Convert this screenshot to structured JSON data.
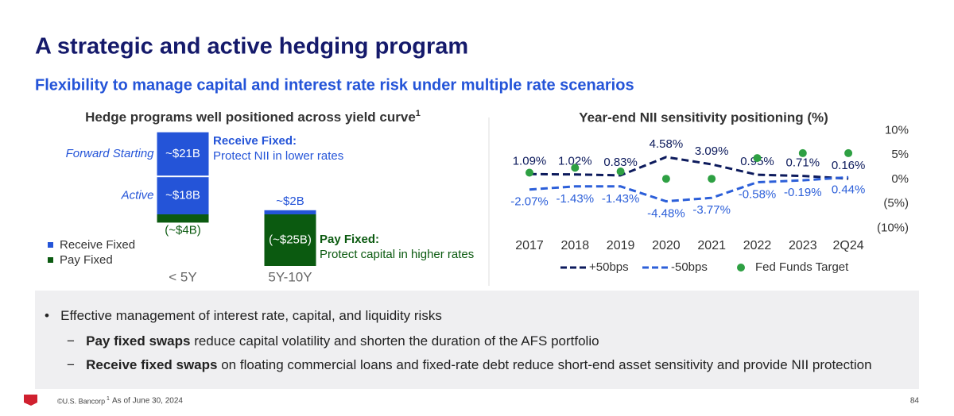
{
  "header": {
    "title": "A strategic and active hedging program",
    "subtitle": "Flexibility to manage capital and interest rate risk under multiple rate scenarios"
  },
  "chart_data": [
    {
      "type": "bar",
      "stacked": true,
      "title": "Hedge programs well positioned across yield curve",
      "title_footnote": "1",
      "categories": [
        "< 5Y",
        "5Y-10Y"
      ],
      "series": [
        {
          "name": "Receive Fixed",
          "segment_label": "Active",
          "color": "#2454d8",
          "values": [
            18,
            2
          ],
          "value_labels": [
            "~$18B",
            "~$2B"
          ]
        },
        {
          "name": "Receive Fixed",
          "segment_label": "Forward Starting",
          "color": "#2454d8",
          "values": [
            21,
            null
          ],
          "value_labels": [
            "~$21B",
            null
          ]
        },
        {
          "name": "Pay Fixed",
          "color": "#0b5a10",
          "values": [
            -4,
            -25
          ],
          "value_labels": [
            "(~$4B)",
            "(~$25B)"
          ]
        }
      ],
      "annotations": [
        {
          "title": "Receive Fixed:",
          "text": "Protect NII in lower rates",
          "color": "#2454d8"
        },
        {
          "title": "Pay Fixed:",
          "text": "Protect capital in higher rates",
          "color": "#0b5a10"
        }
      ]
    },
    {
      "type": "line",
      "title": "Year-end NII sensitivity positioning (%)",
      "categories": [
        "2017",
        "2018",
        "2019",
        "2020",
        "2021",
        "2022",
        "2023",
        "2Q24"
      ],
      "ylim": [
        -10,
        10
      ],
      "yticks": [
        {
          "value": 10,
          "label": "10%"
        },
        {
          "value": 5,
          "label": "5%"
        },
        {
          "value": 0,
          "label": "0%"
        },
        {
          "value": -5,
          "label": "(5%)"
        },
        {
          "value": -10,
          "label": "(10%)"
        }
      ],
      "grid": false,
      "series": [
        {
          "name": "+50bps",
          "style": "dashed",
          "color": "#0c1a5c",
          "values": [
            1.09,
            1.02,
            0.83,
            4.58,
            3.09,
            0.95,
            0.71,
            0.16
          ],
          "value_labels": [
            "1.09%",
            "1.02%",
            "0.83%",
            "4.58%",
            "3.09%",
            "0.95%",
            "0.71%",
            "0.16%"
          ]
        },
        {
          "name": "-50bps",
          "style": "dashed",
          "color": "#2c5fd9",
          "values": [
            -2.07,
            -1.43,
            -1.43,
            -4.48,
            -3.77,
            -0.58,
            -0.19,
            0.44
          ],
          "value_labels": [
            "-2.07%",
            "-1.43%",
            "-1.43%",
            "-4.48%",
            "-3.77%",
            "-0.58%",
            "-0.19%",
            "0.44%"
          ]
        },
        {
          "name": "Fed Funds Target",
          "style": "dot",
          "color": "#2ea043",
          "values": [
            1.38,
            2.38,
            1.63,
            0.13,
            0.13,
            4.38,
            5.38,
            5.38
          ]
        }
      ]
    }
  ],
  "bullets": [
    {
      "text": "Effective management of interest rate, capital, and liquidity risks"
    },
    {
      "bold": "Pay fixed swaps",
      "text": "reduce capital volatility and shorten the duration of the AFS portfolio"
    },
    {
      "bold": "Receive fixed swaps",
      "text": "on floating commercial loans and fixed-rate debt reduce short-end asset sensitivity and provide NII protection"
    }
  ],
  "footer": {
    "brand": "©U.S. Bancorp",
    "footnote_marker": "1",
    "footnote": "As of June 30, 2024",
    "page": "84"
  }
}
